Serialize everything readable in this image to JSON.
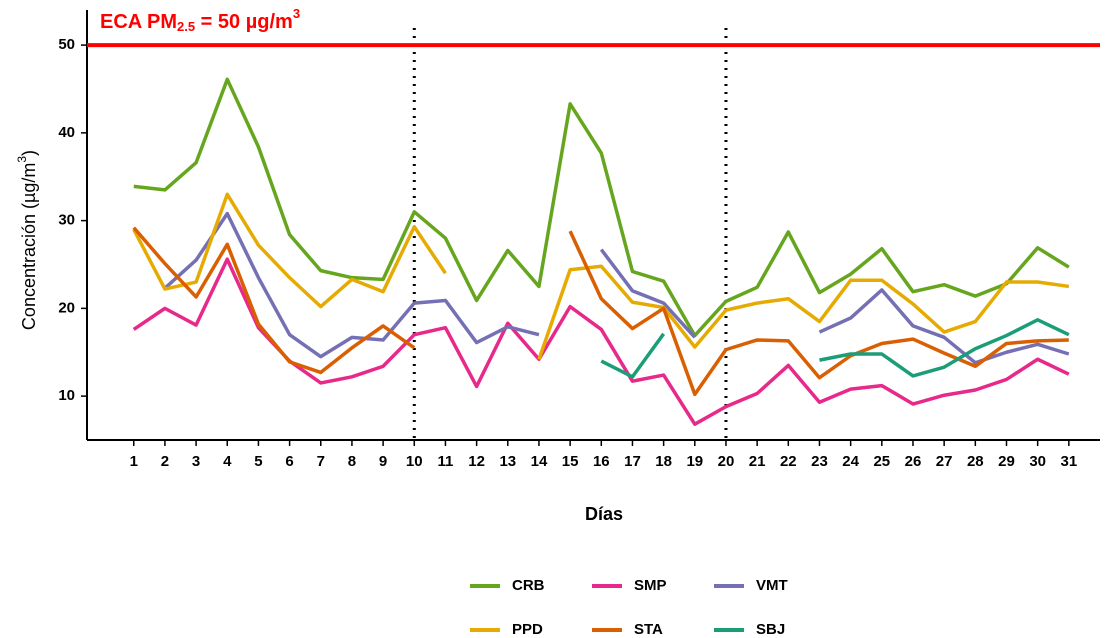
{
  "chart_data": {
    "type": "line",
    "annotation": {
      "text": "ECA PM",
      "sub": "2.5",
      "text2": " = 50 µg/m",
      "sup": "3",
      "value": 50,
      "color": "#ff0000"
    },
    "vlines": [
      10,
      20
    ],
    "y_label": {
      "text": "Concentración (µg/m",
      "sup": "3",
      "text2": ")"
    },
    "x_label": "Días",
    "x": [
      1,
      2,
      3,
      4,
      5,
      6,
      7,
      8,
      9,
      10,
      11,
      12,
      13,
      14,
      15,
      16,
      17,
      18,
      19,
      20,
      21,
      22,
      23,
      24,
      25,
      26,
      27,
      28,
      29,
      30,
      31
    ],
    "xlim": [
      -0.5,
      32
    ],
    "xticks": [
      1,
      2,
      3,
      4,
      5,
      6,
      7,
      8,
      9,
      10,
      11,
      12,
      13,
      14,
      15,
      16,
      17,
      18,
      19,
      20,
      21,
      22,
      23,
      24,
      25,
      26,
      27,
      28,
      29,
      30,
      31
    ],
    "ylim": [
      5,
      54
    ],
    "yticks": [
      10,
      20,
      30,
      40,
      50
    ],
    "legend": "bottom",
    "series": [
      {
        "name": "CRB",
        "color": "#66a61e",
        "values": [
          33.9,
          33.5,
          36.6,
          46.1,
          38.4,
          28.4,
          24.3,
          23.5,
          23.3,
          31.0,
          28.0,
          20.9,
          26.6,
          22.5,
          43.3,
          37.7,
          24.2,
          23.1,
          16.9,
          20.8,
          22.4,
          28.7,
          21.8,
          23.9,
          26.8,
          21.9,
          22.7,
          21.4,
          22.8,
          26.9,
          24.7
        ]
      },
      {
        "name": "SMP",
        "color": "#e7298a",
        "values": [
          17.6,
          20.0,
          18.1,
          25.6,
          17.8,
          14.0,
          11.5,
          12.2,
          13.4,
          17.0,
          17.8,
          11.1,
          18.3,
          14.2,
          20.2,
          17.6,
          11.7,
          12.4,
          6.8,
          8.8,
          10.3,
          13.5,
          9.3,
          10.8,
          11.2,
          9.1,
          10.1,
          10.7,
          11.9,
          14.2,
          12.5
        ]
      },
      {
        "name": "VMT",
        "color": "#7570b3",
        "values": [
          null,
          22.3,
          25.5,
          30.8,
          23.5,
          17.0,
          14.5,
          16.7,
          16.4,
          20.6,
          20.9,
          16.1,
          17.9,
          17.0,
          null,
          26.7,
          22.0,
          20.6,
          16.7,
          null,
          null,
          null,
          17.3,
          18.9,
          22.1,
          18.0,
          16.7,
          13.8,
          15.0,
          15.9,
          14.8
        ]
      },
      {
        "name": "PPD",
        "color": "#e6ab02",
        "values": [
          29.0,
          22.2,
          23.0,
          33.0,
          27.2,
          23.5,
          20.2,
          23.3,
          21.9,
          29.3,
          24.0,
          null,
          null,
          14.2,
          24.4,
          24.8,
          20.7,
          20.1,
          15.6,
          19.8,
          20.6,
          21.1,
          18.5,
          23.2,
          23.2,
          20.5,
          17.3,
          18.5,
          23.0,
          23.0,
          22.5
        ]
      },
      {
        "name": "STA",
        "color": "#d95f02",
        "values": [
          29.2,
          25.1,
          21.3,
          27.3,
          18.2,
          13.9,
          12.7,
          15.5,
          18.0,
          15.5,
          null,
          null,
          null,
          null,
          28.8,
          21.1,
          17.7,
          20.0,
          10.2,
          15.3,
          16.4,
          16.3,
          12.1,
          14.6,
          16.0,
          16.5,
          14.9,
          13.4,
          16.0,
          16.3,
          16.4
        ]
      },
      {
        "name": "SBJ",
        "color": "#1b9e77",
        "values": [
          null,
          null,
          null,
          null,
          null,
          null,
          null,
          null,
          null,
          null,
          null,
          null,
          null,
          null,
          null,
          14.0,
          12.2,
          17.1,
          null,
          null,
          null,
          null,
          14.1,
          14.8,
          14.8,
          12.3,
          13.3,
          15.4,
          16.9,
          18.7,
          17.0
        ]
      }
    ]
  }
}
